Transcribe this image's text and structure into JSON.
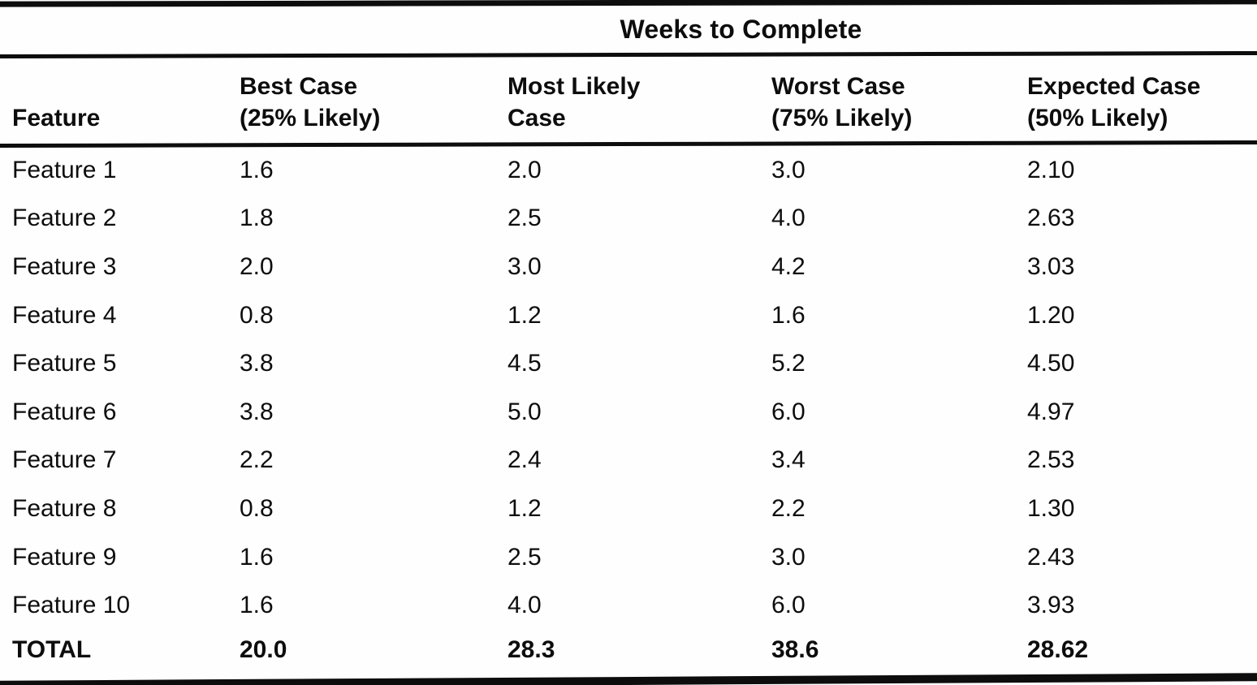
{
  "title": "Weeks to Complete",
  "table": {
    "columns": {
      "feature": "Feature",
      "best": "Best Case\n(25% Likely)",
      "most": "Most Likely\nCase",
      "worst": "Worst Case\n(75% Likely)",
      "expected": "Expected Case\n(50% Likely)"
    },
    "rows": [
      {
        "feature": "Feature 1",
        "best": "1.6",
        "most": "2.0",
        "worst": "3.0",
        "expected": "2.10"
      },
      {
        "feature": "Feature 2",
        "best": "1.8",
        "most": "2.5",
        "worst": "4.0",
        "expected": "2.63"
      },
      {
        "feature": "Feature 3",
        "best": "2.0",
        "most": "3.0",
        "worst": "4.2",
        "expected": "3.03"
      },
      {
        "feature": "Feature 4",
        "best": "0.8",
        "most": "1.2",
        "worst": "1.6",
        "expected": "1.20"
      },
      {
        "feature": "Feature 5",
        "best": "3.8",
        "most": "4.5",
        "worst": "5.2",
        "expected": "4.50"
      },
      {
        "feature": "Feature 6",
        "best": "3.8",
        "most": "5.0",
        "worst": "6.0",
        "expected": "4.97"
      },
      {
        "feature": "Feature 7",
        "best": "2.2",
        "most": "2.4",
        "worst": "3.4",
        "expected": "2.53"
      },
      {
        "feature": "Feature 8",
        "best": "0.8",
        "most": "1.2",
        "worst": "2.2",
        "expected": "1.30"
      },
      {
        "feature": "Feature 9",
        "best": "1.6",
        "most": "2.5",
        "worst": "3.0",
        "expected": "2.43"
      },
      {
        "feature": "Feature 10",
        "best": "1.6",
        "most": "4.0",
        "worst": "6.0",
        "expected": "3.93"
      }
    ],
    "total": {
      "feature": "TOTAL",
      "best": "20.0",
      "most": "28.3",
      "worst": "38.6",
      "expected": "28.62"
    }
  },
  "colors": {
    "ink": "#0d0d0d",
    "paper": "#fefefe"
  }
}
